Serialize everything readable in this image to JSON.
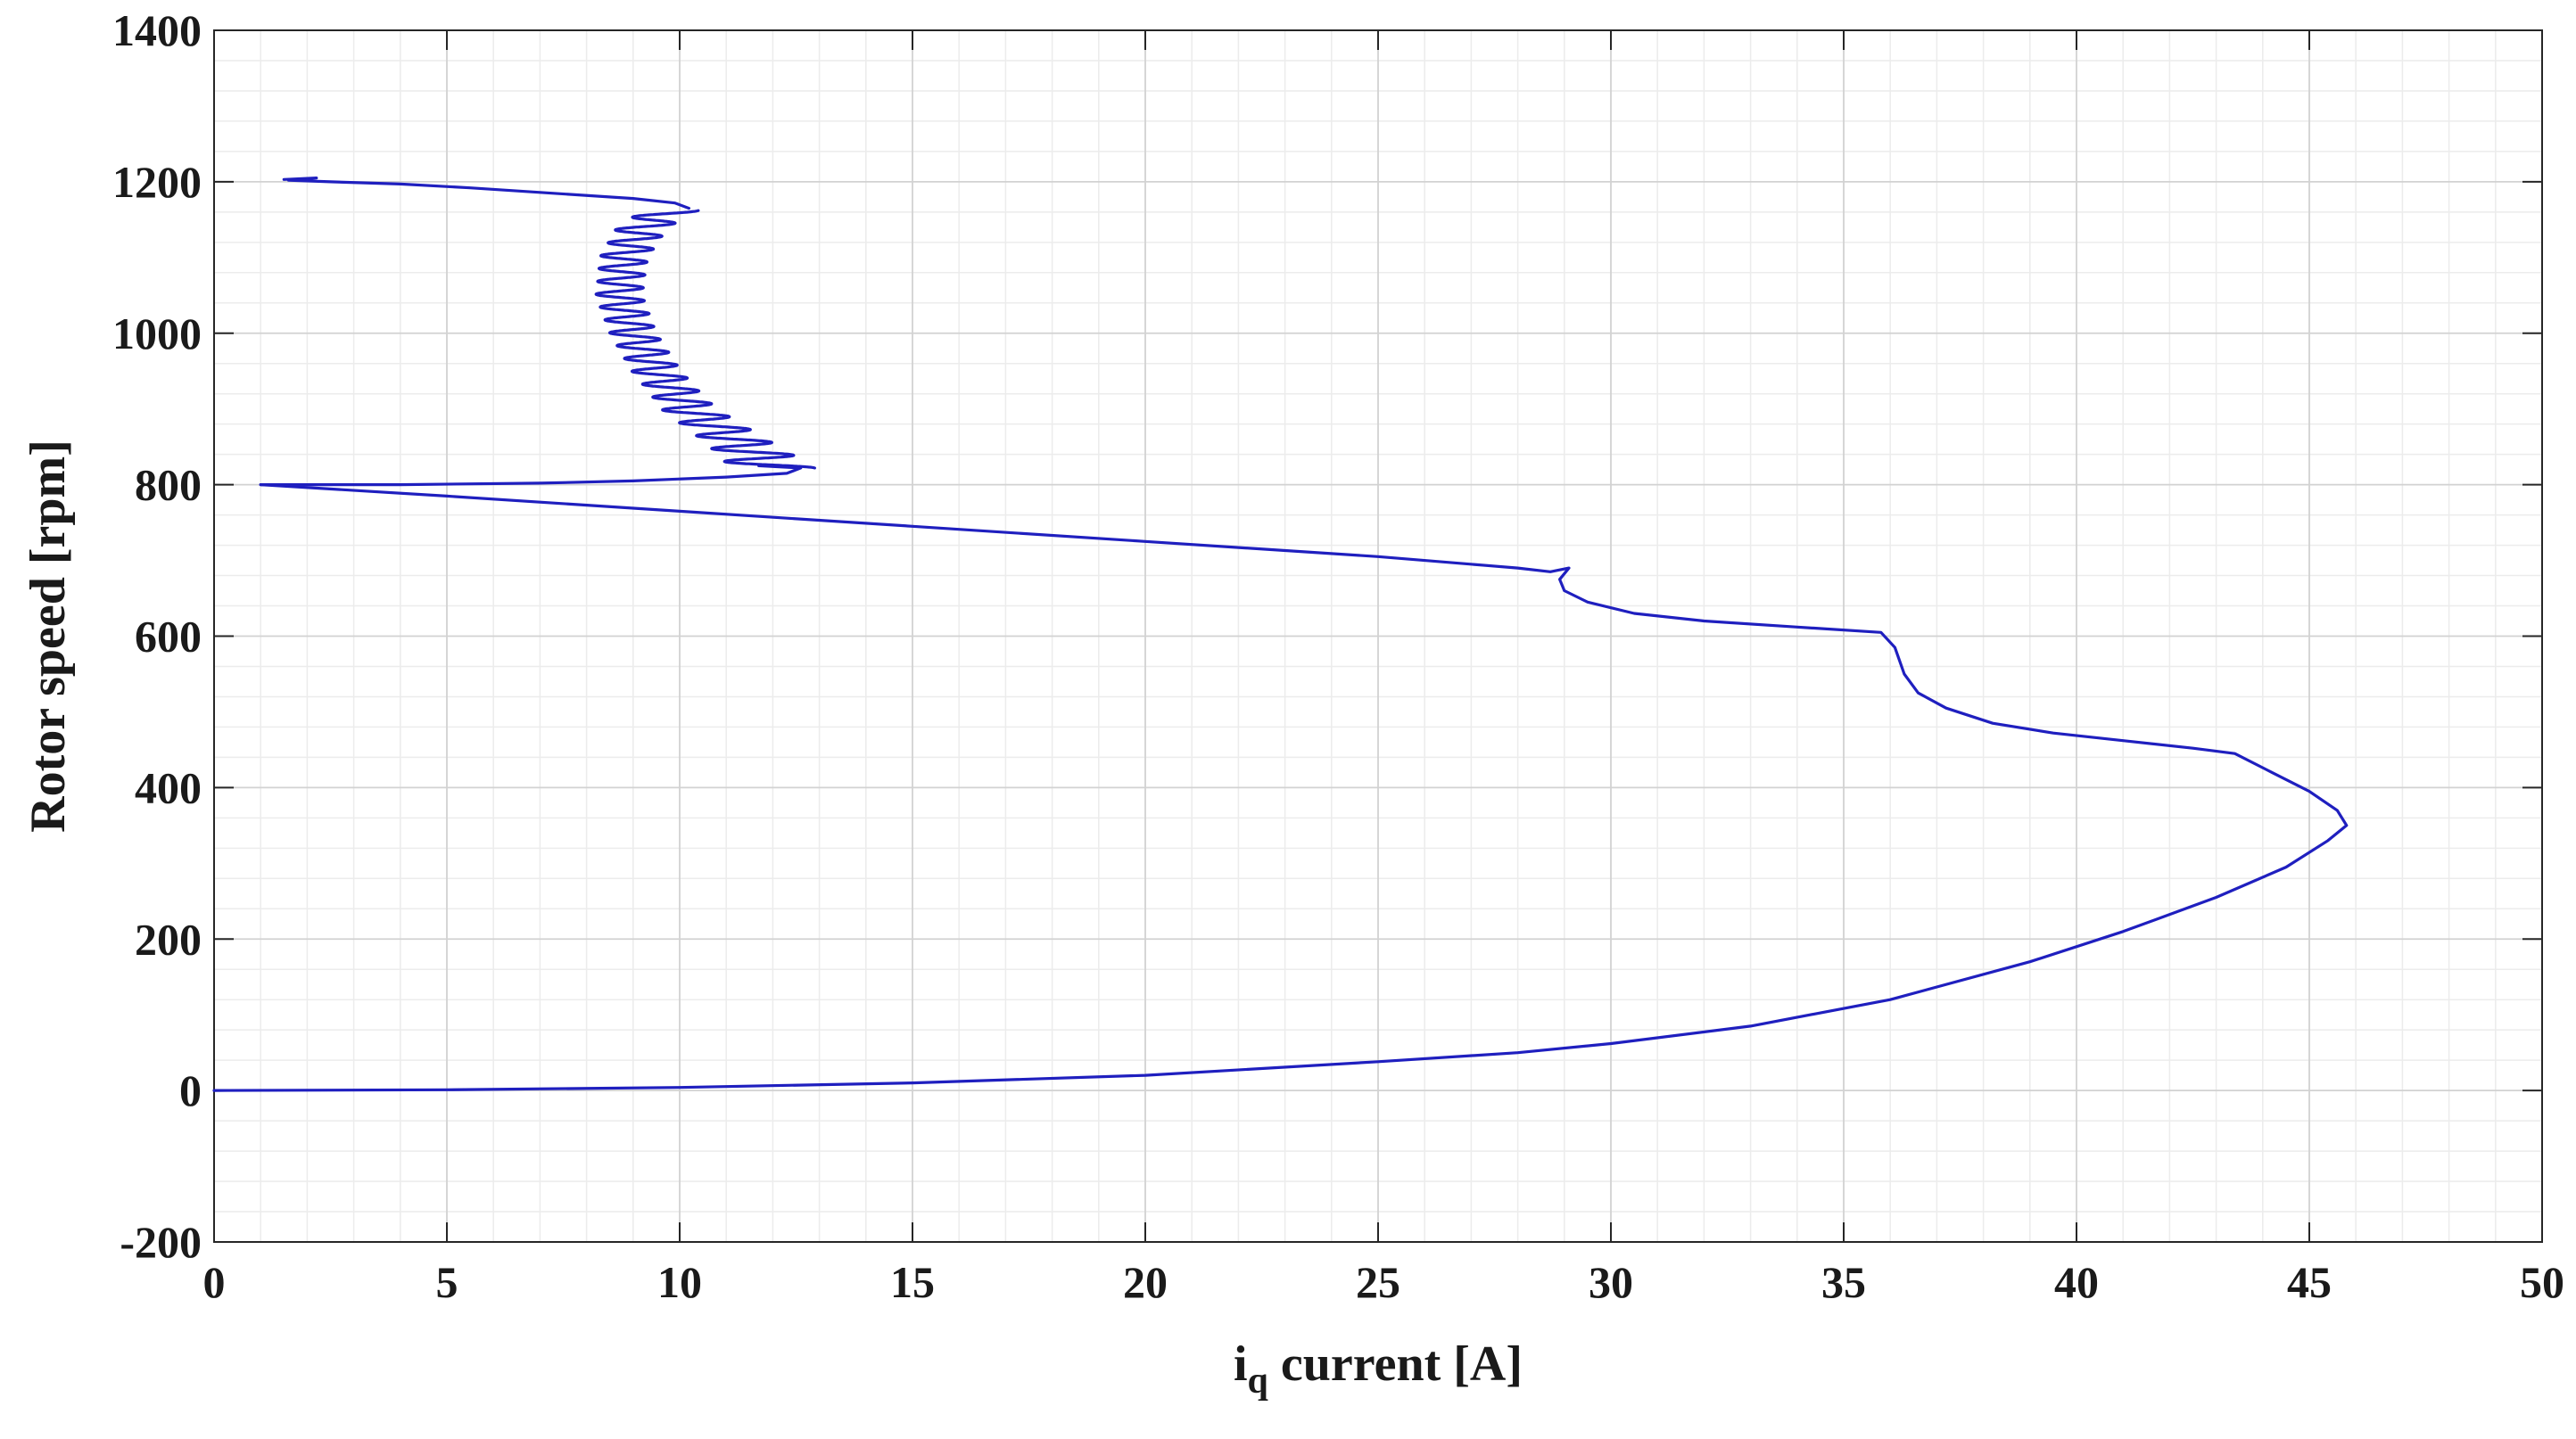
{
  "chart_data": {
    "type": "line",
    "title": "",
    "xlabel_main": "i",
    "xlabel_sub": "q",
    "xlabel_rest": " current [A]",
    "ylabel": "Rotor speed [rpm]",
    "xlim": [
      0,
      50
    ],
    "ylim": [
      -200,
      1400
    ],
    "x_ticks": [
      0,
      5,
      10,
      15,
      20,
      25,
      30,
      35,
      40,
      45,
      50
    ],
    "y_ticks": [
      -200,
      0,
      200,
      400,
      600,
      800,
      1000,
      1200,
      1400
    ],
    "x_tick_labels": [
      "0",
      "5",
      "10",
      "15",
      "20",
      "25",
      "30",
      "35",
      "40",
      "45",
      "50"
    ],
    "y_tick_labels": [
      "-200",
      "0",
      "200",
      "400",
      "600",
      "800",
      "1000",
      "1200",
      "1400"
    ],
    "grid": true,
    "minor_grid": true,
    "line_color": "#1f1fbf",
    "series": [
      {
        "segments": [
          {
            "kind": "path",
            "points": [
              [
                0,
                0
              ],
              [
                5,
                1
              ],
              [
                10,
                4
              ],
              [
                15,
                10
              ],
              [
                20,
                20
              ],
              [
                25,
                38
              ],
              [
                28,
                50
              ],
              [
                30,
                62
              ],
              [
                33,
                85
              ],
              [
                36,
                120
              ],
              [
                39,
                170
              ],
              [
                41,
                210
              ],
              [
                43,
                255
              ],
              [
                44.5,
                295
              ],
              [
                45.4,
                330
              ],
              [
                45.8,
                350
              ],
              [
                45.6,
                370
              ],
              [
                45,
                395
              ],
              [
                44.2,
                420
              ],
              [
                43.4,
                445
              ],
              [
                42.5,
                452
              ],
              [
                41,
                462
              ],
              [
                39.5,
                472
              ],
              [
                38.2,
                485
              ],
              [
                37.2,
                505
              ],
              [
                36.6,
                525
              ],
              [
                36.3,
                550
              ],
              [
                36.1,
                585
              ],
              [
                35.8,
                605
              ],
              [
                34,
                612
              ],
              [
                32,
                620
              ],
              [
                30.5,
                630
              ],
              [
                29.5,
                645
              ],
              [
                29,
                660
              ],
              [
                28.9,
                675
              ],
              [
                29.1,
                690
              ],
              [
                28.7,
                685
              ],
              [
                28,
                690
              ],
              [
                25,
                705
              ],
              [
                20,
                725
              ],
              [
                15,
                745
              ],
              [
                10,
                765
              ],
              [
                5,
                785
              ],
              [
                1,
                800
              ]
            ]
          },
          {
            "kind": "path",
            "points": [
              [
                1,
                800
              ],
              [
                4,
                800
              ],
              [
                7,
                802
              ],
              [
                9,
                805
              ],
              [
                11,
                810
              ],
              [
                12.3,
                815
              ],
              [
                12.6,
                822
              ],
              [
                11.7,
                825
              ]
            ]
          },
          {
            "kind": "oscillation",
            "y_start": 822,
            "y_end": 1162,
            "cycles": 20,
            "bulge": [
              [
                822,
                12.0
              ],
              [
                850,
                11.4
              ],
              [
                900,
                10.2
              ],
              [
                950,
                9.5
              ],
              [
                1000,
                9.0
              ],
              [
                1050,
                8.7
              ],
              [
                1100,
                8.8
              ],
              [
                1140,
                9.2
              ],
              [
                1162,
                9.8
              ]
            ],
            "amp": [
              [
                822,
                0.9
              ],
              [
                860,
                0.7
              ],
              [
                920,
                0.55
              ],
              [
                1000,
                0.5
              ],
              [
                1080,
                0.5
              ],
              [
                1140,
                0.55
              ],
              [
                1162,
                0.6
              ]
            ]
          },
          {
            "kind": "path",
            "points": [
              [
                10.2,
                1165
              ],
              [
                9.9,
                1172
              ],
              [
                9,
                1178
              ],
              [
                7,
                1186
              ],
              [
                5.5,
                1192
              ],
              [
                4,
                1197
              ],
              [
                2.5,
                1200
              ],
              [
                1.6,
                1202
              ],
              [
                2.2,
                1205
              ],
              [
                1.5,
                1203
              ]
            ]
          }
        ]
      }
    ]
  }
}
